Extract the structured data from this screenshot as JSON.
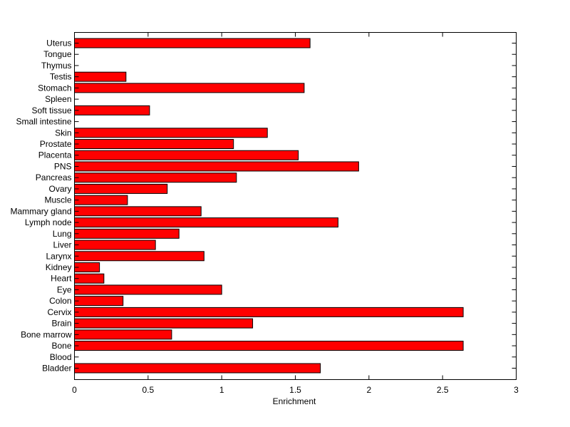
{
  "chart_data": {
    "type": "bar",
    "orientation": "horizontal",
    "title": "",
    "xlabel": "Enrichment",
    "ylabel": "",
    "xlim": [
      0,
      3
    ],
    "xticks": [
      "0",
      "0.5",
      "1",
      "1.5",
      "2",
      "2.5",
      "3"
    ],
    "grid": false,
    "bar_color": "#ff0000",
    "categories": [
      "Bladder",
      "Blood",
      "Bone",
      "Bone marrow",
      "Brain",
      "Cervix",
      "Colon",
      "Eye",
      "Heart",
      "Kidney",
      "Larynx",
      "Liver",
      "Lung",
      "Lymph node",
      "Mammary gland",
      "Muscle",
      "Ovary",
      "Pancreas",
      "PNS",
      "Placenta",
      "Prostate",
      "Skin",
      "Small intestine",
      "Soft tissue",
      "Spleen",
      "Stomach",
      "Testis",
      "Thymus",
      "Tongue",
      "Uterus"
    ],
    "values": [
      1.67,
      0,
      2.64,
      0.66,
      1.21,
      2.64,
      0.33,
      1.0,
      0.2,
      0.17,
      0.88,
      0.55,
      0.71,
      1.79,
      0.86,
      0.36,
      0.63,
      1.1,
      1.93,
      1.52,
      1.08,
      1.31,
      0,
      0.51,
      0,
      1.56,
      0.35,
      0,
      0,
      1.6
    ]
  }
}
